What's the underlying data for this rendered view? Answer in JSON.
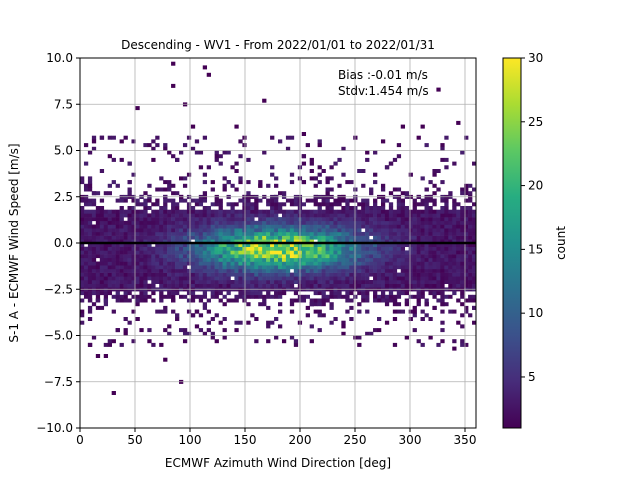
{
  "chart_data": {
    "type": "heatmap",
    "title": "Descending - WV1 - From 2022/01/01 to 2022/01/31",
    "xlabel": "ECMWF Azimuth Wind Direction [deg]",
    "ylabel": "S-1 A - ECMWF Wind Speed [m/s]",
    "xlim": [
      0,
      360
    ],
    "ylim": [
      -10,
      10
    ],
    "xticks": [
      "0",
      "50",
      "100",
      "150",
      "200",
      "250",
      "300",
      "350"
    ],
    "yticks": [
      "−10.0",
      "−7.5",
      "−5.0",
      "−2.5",
      "0.0",
      "2.5",
      "5.0",
      "7.5",
      "10.0"
    ],
    "grid": true,
    "colorbar": {
      "label": "count",
      "colormap": "viridis",
      "range": [
        1,
        30
      ],
      "ticks": [
        "5",
        "10",
        "15",
        "20",
        "25",
        "30"
      ]
    },
    "reference_line": {
      "y": 0,
      "color": "#000000"
    },
    "annotations": {
      "bias": "Bias :-0.01 m/s",
      "stdv": "Stdv:1.454 m/s"
    },
    "bins": {
      "x_width_deg": 3.6,
      "y_height_ms": 0.2
    },
    "dense_region": {
      "x_range": [
        0,
        360
      ],
      "y_range": [
        -3.0,
        2.4
      ],
      "peak_center": {
        "x": 180,
        "y": -0.3
      },
      "peak_count": 30
    },
    "outliers": [
      [
        84,
        9.7
      ],
      [
        113,
        9.5
      ],
      [
        117,
        9.1
      ],
      [
        84,
        8.4
      ],
      [
        166,
        7.7
      ],
      [
        327,
        8.3
      ],
      [
        27,
        4.8
      ],
      [
        38,
        5.4
      ],
      [
        103,
        6.2
      ],
      [
        143,
        6.2
      ],
      [
        203,
        5.9
      ],
      [
        293,
        6.3
      ],
      [
        345,
        6.4
      ],
      [
        306,
        5.7
      ],
      [
        312,
        6.3
      ],
      [
        277,
        5.6
      ],
      [
        216,
        5.2
      ],
      [
        53,
        7.3
      ],
      [
        97,
        7.6
      ],
      [
        25,
        -6.2
      ],
      [
        17,
        -6.2
      ],
      [
        31,
        -8.1
      ],
      [
        90,
        -7.6
      ],
      [
        76,
        -6.3
      ],
      [
        124,
        -5.3
      ],
      [
        107,
        -4.6
      ],
      [
        187,
        -5.4
      ],
      [
        240,
        -4.6
      ],
      [
        279,
        -4.3
      ],
      [
        305,
        -3.8
      ],
      [
        345,
        -4.4
      ],
      [
        331,
        -5.4
      ],
      [
        320,
        -5.1
      ],
      [
        340,
        -5.8
      ],
      [
        270,
        -4.7
      ],
      [
        29,
        -5.4
      ],
      [
        43,
        -4.9
      ],
      [
        55,
        -4.8
      ],
      [
        63,
        -5.3
      ],
      [
        152,
        -4.3
      ],
      [
        241,
        -4.9
      ]
    ]
  }
}
